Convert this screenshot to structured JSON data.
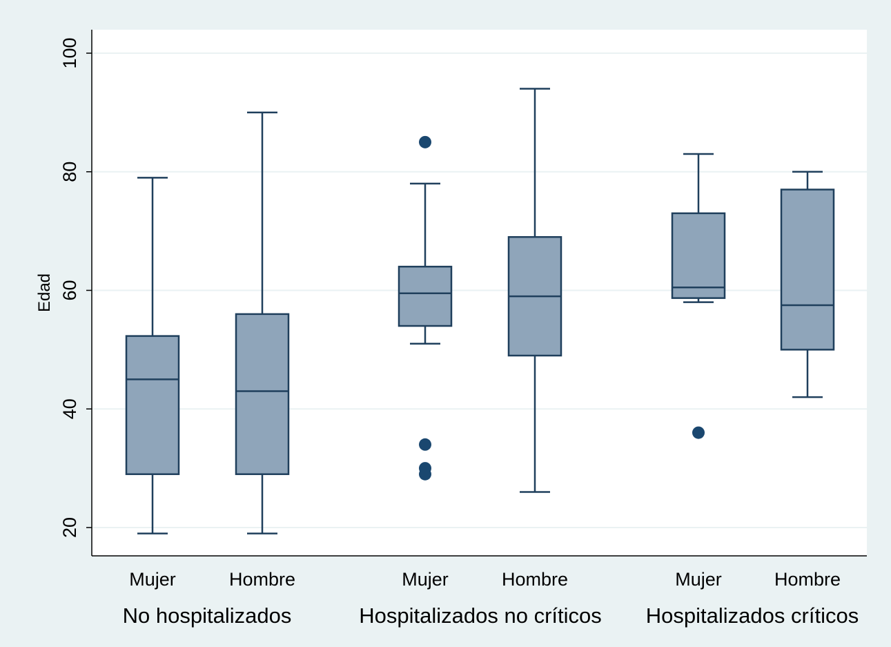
{
  "chart_data": {
    "type": "box",
    "title": "",
    "xlabel": "",
    "ylabel": "Edad",
    "ylim": [
      15,
      104
    ],
    "yticks": [
      20,
      40,
      60,
      80,
      100
    ],
    "grid": true,
    "legend": "none",
    "colors": {
      "background": "#eaf2f3",
      "plot_area": "#ffffff",
      "box_fill": "#8fa5ba",
      "box_stroke": "#1f3f5c",
      "outlier": "#1a476f",
      "grid": "#eaf2f3",
      "text": "#000000"
    },
    "groups": [
      {
        "label": "No hospitalizados",
        "boxes": [
          {
            "label": "Mujer",
            "whisker_low": 19,
            "q1": 29,
            "median": 45,
            "q3": 52.3,
            "whisker_high": 79,
            "outliers": []
          },
          {
            "label": "Hombre",
            "whisker_low": 19,
            "q1": 29,
            "median": 43,
            "q3": 56,
            "whisker_high": 90,
            "outliers": []
          }
        ]
      },
      {
        "label": "Hospitalizados no críticos",
        "boxes": [
          {
            "label": "Mujer",
            "whisker_low": 51,
            "q1": 54,
            "median": 59.5,
            "q3": 64,
            "whisker_high": 78,
            "outliers": [
              85,
              34,
              30,
              29
            ]
          },
          {
            "label": "Hombre",
            "whisker_low": 26,
            "q1": 49,
            "median": 59,
            "q3": 69,
            "whisker_high": 94,
            "outliers": []
          }
        ]
      },
      {
        "label": "Hospitalizados críticos",
        "boxes": [
          {
            "label": "Mujer",
            "whisker_low": 58,
            "q1": 58.7,
            "median": 60.5,
            "q3": 73,
            "whisker_high": 83,
            "outliers": [
              36
            ]
          },
          {
            "label": "Hombre",
            "whisker_low": 42,
            "q1": 50,
            "median": 57.5,
            "q3": 77,
            "whisker_high": 80,
            "outliers": []
          }
        ]
      }
    ]
  }
}
